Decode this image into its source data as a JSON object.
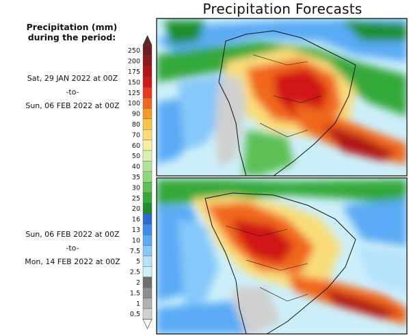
{
  "title": "Precipitation Forecasts",
  "legend": {
    "title_line1": "Precipitation (mm)",
    "title_line2": "during the period:",
    "levels": [
      "250",
      "200",
      "175",
      "150",
      "125",
      "100",
      "90",
      "80",
      "70",
      "60",
      "50",
      "40",
      "35",
      "30",
      "25",
      "20",
      "16",
      "13",
      "10",
      "7.5",
      "5",
      "2.5",
      "2",
      "1.5",
      "1",
      "0.5"
    ],
    "colors": [
      "#6e1e1e",
      "#8b1a1a",
      "#b01414",
      "#d01818",
      "#e8391c",
      "#f0681f",
      "#f59a28",
      "#f8c34a",
      "#f9dd7a",
      "#fbef9e",
      "#d7f0b4",
      "#b3e39a",
      "#8fd67e",
      "#5cc057",
      "#34a83a",
      "#1f8f2c",
      "#2e69d6",
      "#3f8aee",
      "#5aaaf5",
      "#86c8f9",
      "#b5e2fb",
      "#cdeffa",
      "#6e6e6e",
      "#8e8e8e",
      "#b1b1b1",
      "#cfcfcf"
    ]
  },
  "periods": [
    {
      "start": "Sat, 29 JAN 2022 at 00Z",
      "sep": "-to-",
      "end": "Sun, 06 FEB 2022 at 00Z"
    },
    {
      "start": "Sun, 06 FEB 2022 at 00Z",
      "sep": "-to-",
      "end": "Mon, 14 FEB 2022 at 00Z"
    }
  ]
}
